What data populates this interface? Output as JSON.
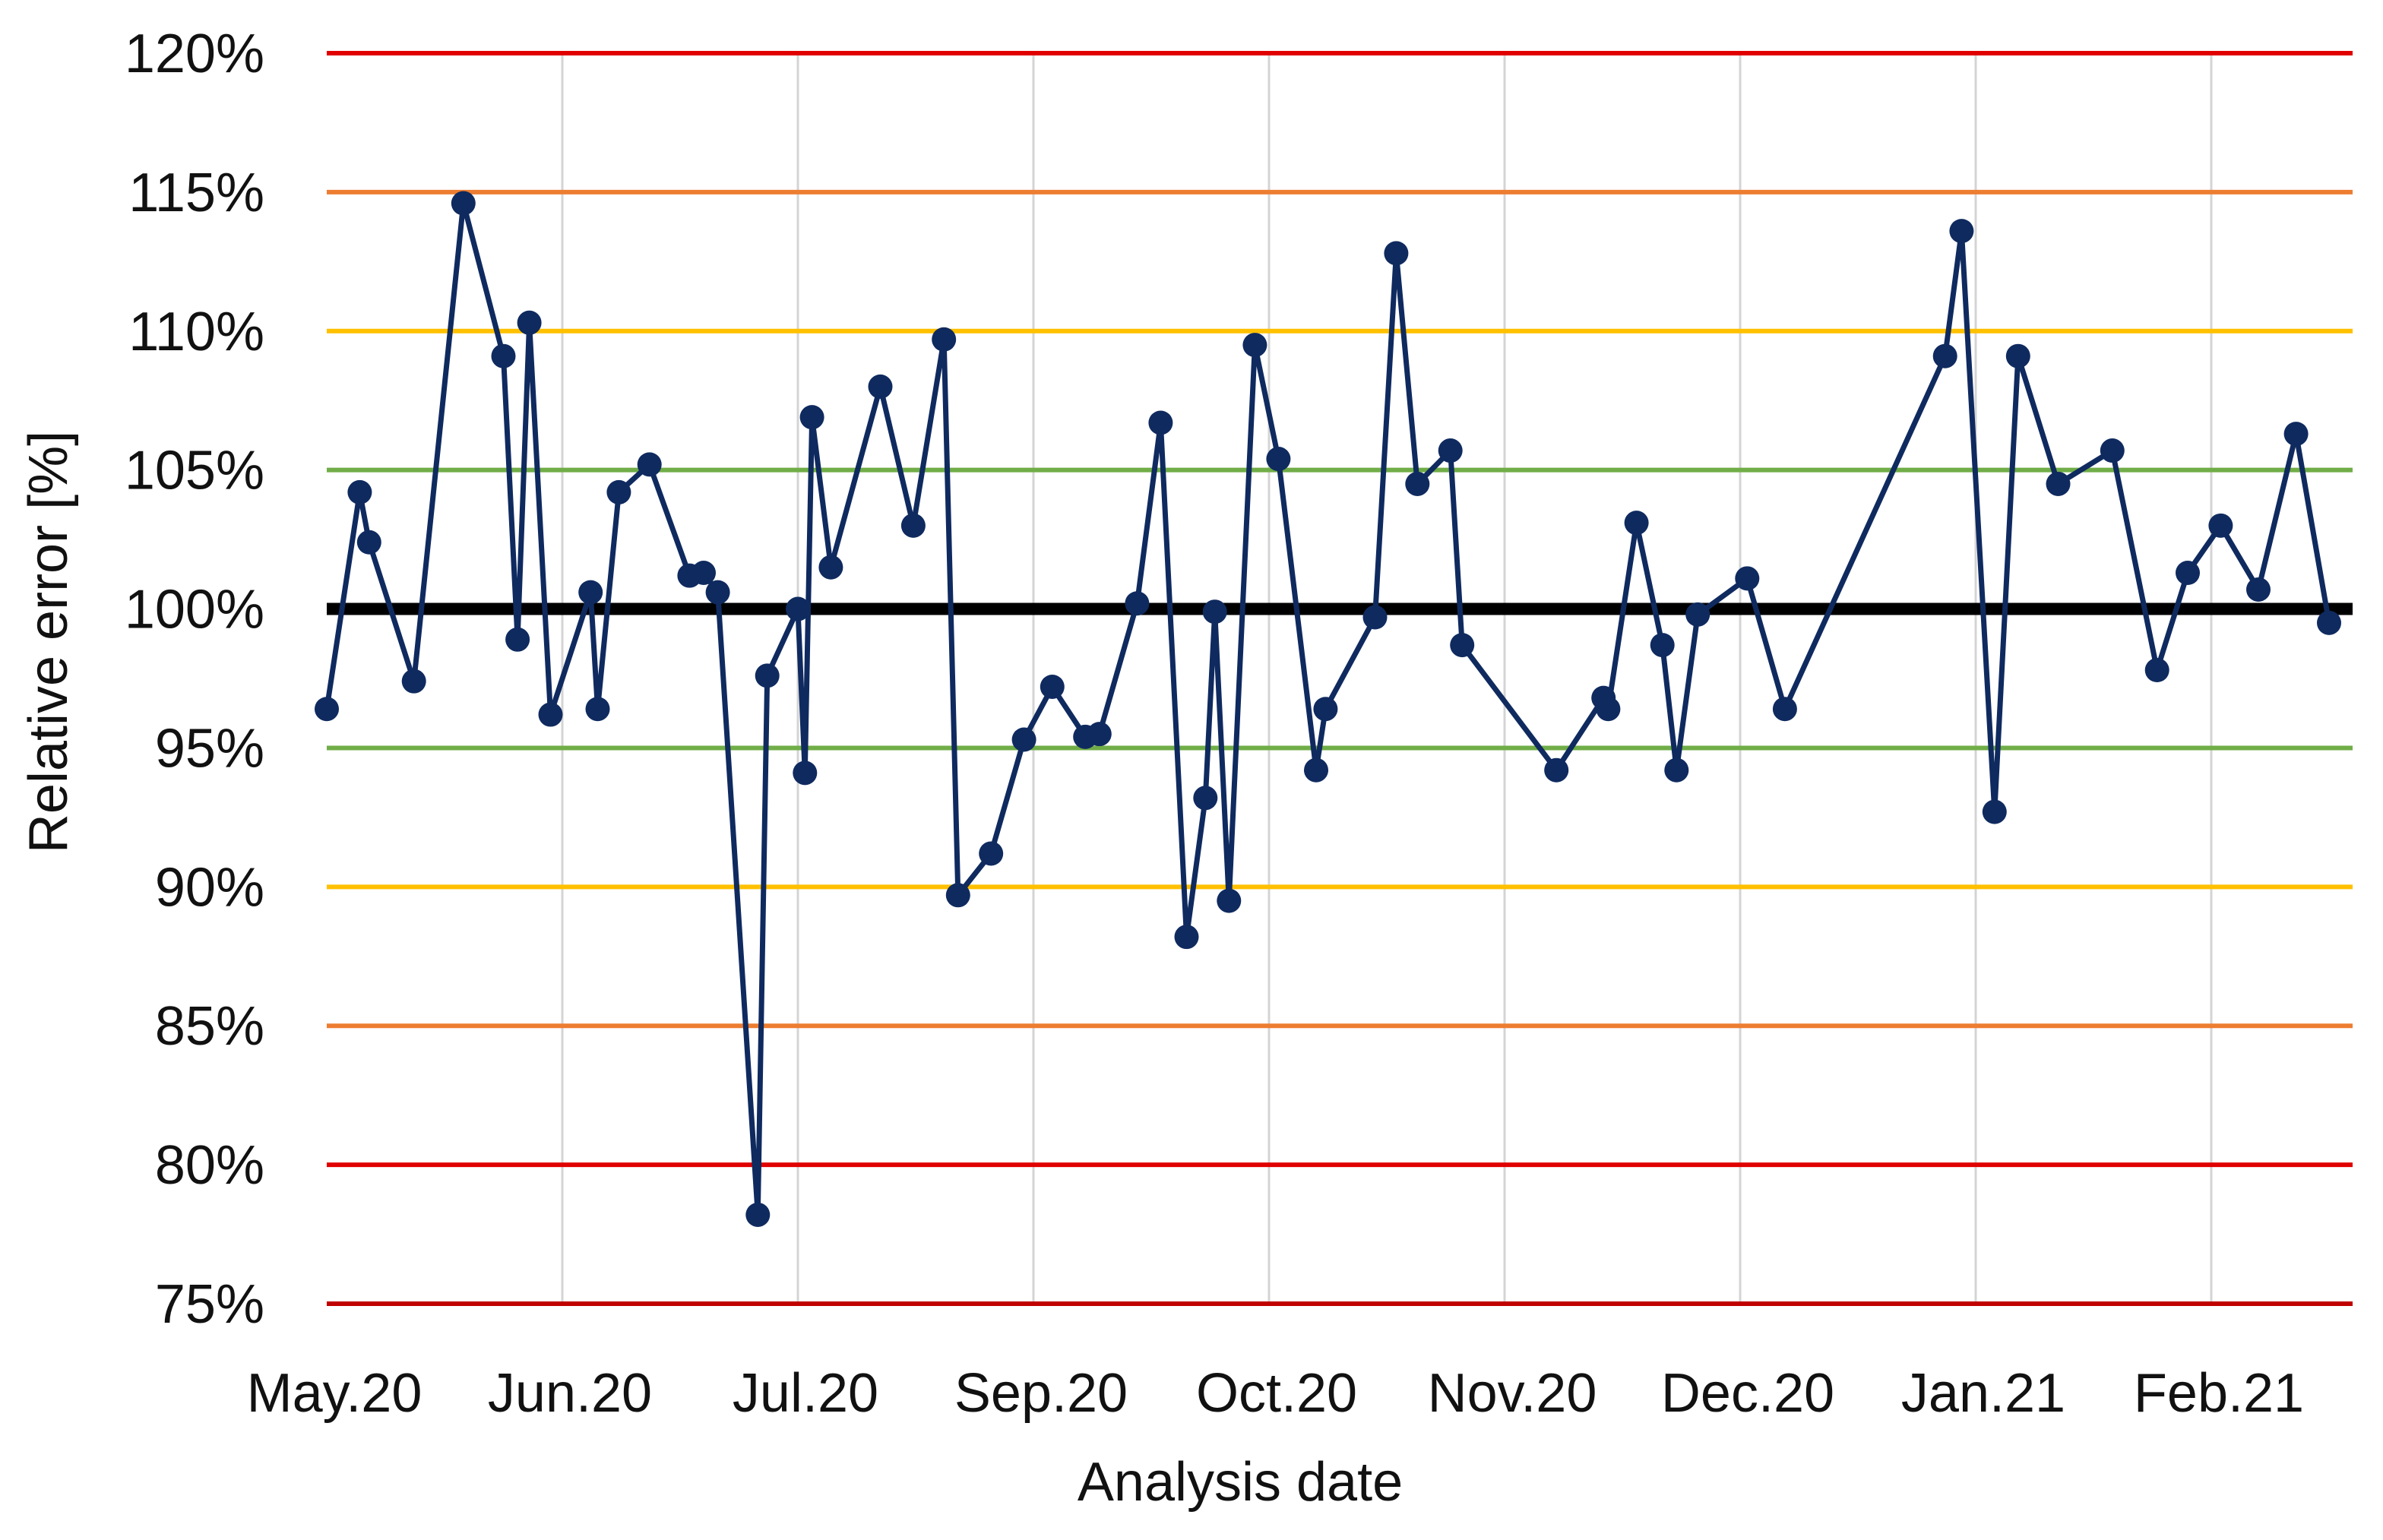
{
  "chart_data": {
    "type": "line",
    "title": "",
    "xlabel": "Analysis date",
    "ylabel": "Relative error [%]",
    "ylim": [
      75,
      120
    ],
    "y_ticks": [
      75,
      80,
      85,
      90,
      95,
      100,
      105,
      110,
      115,
      120
    ],
    "y_tick_format": "{v}%",
    "x_range": [
      0,
      8.6
    ],
    "x_ticks": [
      {
        "pos": 0,
        "label": "May.20"
      },
      {
        "pos": 1,
        "label": "Jun.20"
      },
      {
        "pos": 2,
        "label": "Jul.20"
      },
      {
        "pos": 3,
        "label": "Sep.20"
      },
      {
        "pos": 4,
        "label": "Oct.20"
      },
      {
        "pos": 5,
        "label": "Nov.20"
      },
      {
        "pos": 6,
        "label": "Dec.20"
      },
      {
        "pos": 7,
        "label": "Jan.21"
      },
      {
        "pos": 8,
        "label": "Feb.21"
      }
    ],
    "grid": "vertical",
    "reference_lines": [
      {
        "value": 120,
        "color": "#e00000"
      },
      {
        "value": 115,
        "color": "#ed7d31"
      },
      {
        "value": 110,
        "color": "#ffc000"
      },
      {
        "value": 105,
        "color": "#70ad47"
      },
      {
        "value": 100,
        "color": "#000000",
        "bold": true
      },
      {
        "value": 95,
        "color": "#70ad47"
      },
      {
        "value": 90,
        "color": "#ffc000"
      },
      {
        "value": 85,
        "color": "#ed7d31"
      },
      {
        "value": 80,
        "color": "#e00000"
      },
      {
        "value": 75,
        "color": "#c00000"
      }
    ],
    "series": [
      {
        "name": "Relative error",
        "color": "#0f2a5f",
        "x": [
          0.0,
          0.14,
          0.18,
          0.37,
          0.58,
          0.75,
          0.81,
          0.86,
          0.95,
          1.12,
          1.15,
          1.24,
          1.37,
          1.54,
          1.6,
          1.66,
          1.83,
          1.87,
          2.0,
          2.03,
          2.06,
          2.14,
          2.35,
          2.49,
          2.62,
          2.68,
          2.82,
          2.96,
          3.08,
          3.22,
          3.28,
          3.44,
          3.54,
          3.65,
          3.73,
          3.77,
          3.83,
          3.94,
          4.04,
          4.2,
          4.24,
          4.45,
          4.54,
          4.63,
          4.77,
          4.82,
          5.22,
          5.42,
          5.44,
          5.56,
          5.67,
          5.73,
          5.82,
          6.03,
          6.19,
          6.87,
          6.94,
          7.08,
          7.18,
          7.35,
          7.58,
          7.77,
          7.9,
          8.04,
          8.2,
          8.36,
          8.5
        ],
        "values": [
          96.4,
          104.2,
          102.4,
          97.4,
          114.6,
          109.1,
          98.9,
          110.3,
          96.2,
          100.6,
          96.4,
          104.2,
          105.2,
          101.2,
          101.3,
          100.6,
          78.2,
          97.6,
          100.0,
          94.1,
          106.9,
          101.5,
          108.0,
          103.0,
          109.7,
          89.7,
          91.2,
          95.3,
          97.2,
          95.4,
          95.5,
          100.2,
          106.7,
          88.2,
          93.2,
          99.9,
          89.5,
          109.5,
          105.4,
          94.2,
          96.4,
          99.7,
          112.8,
          104.5,
          105.7,
          98.7,
          94.2,
          96.8,
          96.4,
          103.1,
          98.7,
          94.2,
          99.8,
          101.1,
          96.4,
          109.1,
          113.6,
          92.7,
          109.1,
          104.5,
          105.7,
          97.8,
          101.3,
          103.0,
          100.7,
          106.3,
          99.5
        ]
      }
    ]
  }
}
